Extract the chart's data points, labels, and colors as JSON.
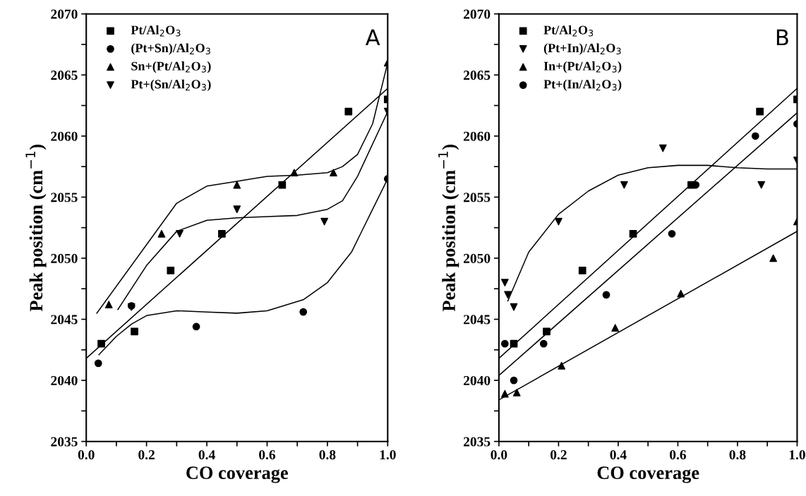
{
  "chart_data": [
    {
      "type": "scatter",
      "xlabel": "CO coverage",
      "ylabel": "Peak position (cm$^{−1}$)",
      "annotations": [
        "A"
      ],
      "legend": "top left",
      "grid": false,
      "xlim": [
        0.0,
        1.0
      ],
      "ylim": [
        2035,
        2070
      ],
      "xticks": [
        {
          "value": 0.0,
          "label": "0.0"
        },
        {
          "value": 0.1,
          "label": null
        },
        {
          "value": 0.2,
          "label": "0.2"
        },
        {
          "value": 0.3,
          "label": null
        },
        {
          "value": 0.4,
          "label": "0.4"
        },
        {
          "value": 0.5,
          "label": null
        },
        {
          "value": 0.6,
          "label": "0.6"
        },
        {
          "value": 0.7,
          "label": null
        },
        {
          "value": 0.8,
          "label": "0.8"
        },
        {
          "value": 0.9,
          "label": null
        },
        {
          "value": 1.0,
          "label": "1.0"
        }
      ],
      "yticks": [
        2035,
        {
          "value": 2037.5,
          "label": null
        },
        2040,
        {
          "value": 2042.5,
          "label": null
        },
        2045,
        {
          "value": 2047.5,
          "label": null
        },
        2050,
        {
          "value": 2052.5,
          "label": null
        },
        2055,
        {
          "value": 2057.5,
          "label": null
        },
        2060,
        {
          "value": 2062.5,
          "label": null
        },
        2065,
        {
          "value": 2067.5,
          "label": null
        },
        2070
      ],
      "series": [
        {
          "name": "Pt/Al$_{2}$O$_{3}$",
          "color": "#000000",
          "marker": "square",
          "x": [
            0.05,
            0.16,
            0.28,
            0.45,
            0.65,
            0.87,
            1.0
          ],
          "values": [
            2043,
            2044,
            2049,
            2052,
            2056,
            2062,
            2063
          ]
        },
        {
          "name": "(Pt+Sn)/Al$_{2}$O$_{3}$",
          "color": "#000000",
          "marker": "circle",
          "x": [
            0.04,
            0.15,
            0.365,
            0.72,
            1.0
          ],
          "values": [
            2041.4,
            2046.1,
            2044.4,
            2045.6,
            2056.5
          ]
        },
        {
          "name": "Sn+(Pt/Al$_{2}$O$_{3}$)",
          "color": "#000000",
          "marker": "triangle",
          "x": [
            0.075,
            0.25,
            0.5,
            0.69,
            0.82,
            1.0
          ],
          "values": [
            2046.2,
            2052,
            2056,
            2057,
            2057,
            2066
          ]
        },
        {
          "name": "Pt+(Sn/Al$_{2}$O$_{3}$)",
          "color": "#000000",
          "marker": "triangle_down",
          "x": [
            0.15,
            0.31,
            0.5,
            0.79,
            1.0
          ],
          "values": [
            2046,
            2052,
            2054,
            2053,
            2062
          ]
        },
        {
          "type": "line",
          "color": "#000000",
          "marker": "none",
          "x": [
            0.0,
            1.0
          ],
          "values": [
            2041.8,
            2063.9
          ]
        },
        {
          "type": "line",
          "color": "#000000",
          "marker": "none",
          "x": [
            0.042,
            0.1,
            0.15,
            0.2,
            0.3,
            0.4,
            0.5,
            0.6,
            0.72,
            0.8,
            0.88,
            0.95,
            1.0
          ],
          "values": [
            2042.1,
            2043.6,
            2044.6,
            2045.3,
            2045.7,
            2045.6,
            2045.5,
            2045.7,
            2046.6,
            2048,
            2050.5,
            2054,
            2056.5
          ]
        },
        {
          "type": "line",
          "color": "#000000",
          "marker": "none",
          "x": [
            0.035,
            0.3,
            0.4,
            0.5,
            0.6,
            0.7,
            0.8,
            0.85,
            0.9,
            0.95,
            1.0
          ],
          "values": [
            2045.5,
            2054.5,
            2055.9,
            2056.3,
            2056.7,
            2056.8,
            2057.0,
            2057.5,
            2058.5,
            2061,
            2066
          ]
        },
        {
          "type": "line",
          "color": "#000000",
          "marker": "none",
          "x": [
            0.105,
            0.2,
            0.3,
            0.4,
            0.5,
            0.6,
            0.7,
            0.8,
            0.85,
            0.9,
            1.0
          ],
          "values": [
            2045.8,
            2049.4,
            2052.2,
            2053.1,
            2053.3,
            2053.4,
            2053.5,
            2054,
            2054.7,
            2056.7,
            2062
          ]
        }
      ]
    },
    {
      "type": "scatter",
      "xlabel": "CO coverage",
      "ylabel": "Peak position (cm$^{−1}$)",
      "annotations": [
        "B"
      ],
      "legend": "top left",
      "grid": false,
      "xlim": [
        0.0,
        1.0
      ],
      "ylim": [
        2035,
        2070
      ],
      "xticks": [
        {
          "value": 0.0,
          "label": "0.0"
        },
        {
          "value": 0.1,
          "label": null
        },
        {
          "value": 0.2,
          "label": "0.2"
        },
        {
          "value": 0.3,
          "label": null
        },
        {
          "value": 0.4,
          "label": "0.4"
        },
        {
          "value": 0.5,
          "label": null
        },
        {
          "value": 0.6,
          "label": "0.6"
        },
        {
          "value": 0.7,
          "label": null
        },
        {
          "value": 0.8,
          "label": "0.8"
        },
        {
          "value": 0.9,
          "label": null
        },
        {
          "value": 1.0,
          "label": "1.0"
        }
      ],
      "yticks": [
        2035,
        {
          "value": 2037.5,
          "label": null
        },
        2040,
        {
          "value": 2042.5,
          "label": null
        },
        2045,
        {
          "value": 2047.5,
          "label": null
        },
        2050,
        {
          "value": 2052.5,
          "label": null
        },
        2055,
        {
          "value": 2057.5,
          "label": null
        },
        2060,
        {
          "value": 2062.5,
          "label": null
        },
        2065,
        {
          "value": 2067.5,
          "label": null
        },
        2070
      ],
      "series": [
        {
          "name": "Pt/Al$_{2}$O$_{3}$",
          "color": "#000000",
          "marker": "square",
          "x": [
            0.05,
            0.16,
            0.28,
            0.45,
            0.645,
            0.875,
            1.0
          ],
          "values": [
            2043,
            2044,
            2049,
            2052,
            2056,
            2062,
            2063
          ]
        },
        {
          "name": "(Pt+In)/Al$_{2}$O$_{3}$",
          "color": "#000000",
          "marker": "triangle_down",
          "x": [
            0.02,
            0.03,
            0.05,
            0.2,
            0.42,
            0.55,
            0.88,
            1.0
          ],
          "values": [
            2048,
            2047,
            2046,
            2053,
            2056,
            2059,
            2056,
            2058
          ]
        },
        {
          "name": "In+(Pt/Al$_{2}$O$_{3}$)",
          "color": "#000000",
          "marker": "triangle",
          "x": [
            0.02,
            0.06,
            0.21,
            0.39,
            0.61,
            0.92,
            1.0
          ],
          "values": [
            2038.9,
            2039,
            2041.2,
            2044.3,
            2047.1,
            2050,
            2053
          ]
        },
        {
          "name": "Pt+(In/Al$_{2}$O$_{3}$)",
          "color": "#000000",
          "marker": "circle",
          "x": [
            0.02,
            0.05,
            0.15,
            0.36,
            0.58,
            0.66,
            0.86,
            1.0
          ],
          "values": [
            2043,
            2040,
            2043,
            2047,
            2052,
            2056,
            2060,
            2061
          ]
        },
        {
          "type": "line",
          "color": "#000000",
          "marker": "none",
          "x": [
            0.0,
            1.0
          ],
          "values": [
            2041.8,
            2063.9
          ]
        },
        {
          "type": "line",
          "color": "#000000",
          "marker": "none",
          "x": [
            0.03,
            0.1,
            0.2,
            0.3,
            0.4,
            0.5,
            0.6,
            0.7,
            0.8,
            0.9,
            1.0
          ],
          "values": [
            2046.5,
            2050.5,
            2053.6,
            2055.5,
            2056.8,
            2057.4,
            2057.6,
            2057.6,
            2057.4,
            2057.3,
            2057.3
          ]
        },
        {
          "type": "line",
          "color": "#000000",
          "marker": "none",
          "x": [
            0.0,
            1.0
          ],
          "values": [
            2038.4,
            2052.2
          ]
        },
        {
          "type": "line",
          "color": "#000000",
          "marker": "none",
          "x": [
            0.0,
            1.0
          ],
          "values": [
            2040.4,
            2061.9
          ]
        }
      ]
    }
  ]
}
